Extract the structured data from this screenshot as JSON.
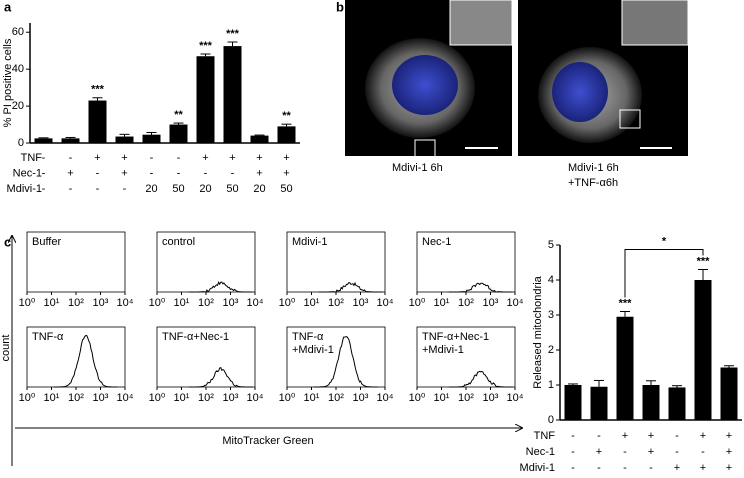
{
  "panel_labels": [
    "a",
    "b",
    "c"
  ],
  "images": [
    {
      "caption": [
        "Mdivi-1 6h"
      ]
    },
    {
      "caption": [
        "Mdivi-1 6h",
        "+TNF-α6h"
      ]
    }
  ],
  "chart_data": [
    {
      "type": "bar",
      "ylabel": "% PI positive cells",
      "ylim": [
        0,
        65
      ],
      "yticks": [
        0,
        20,
        40,
        60
      ],
      "values": [
        2.5,
        2.5,
        23,
        3.5,
        4.5,
        10,
        47,
        52.5,
        4,
        9
      ],
      "errors": [
        0.3,
        0.5,
        1.5,
        1.2,
        1.2,
        0.8,
        1.2,
        2.2,
        0.3,
        1.2
      ],
      "significance": [
        null,
        null,
        "***",
        null,
        null,
        "**",
        "***",
        "***",
        null,
        "**"
      ],
      "color": "#000000",
      "conditions": [
        {
          "name": "TNF",
          "values": [
            "-",
            "-",
            "+",
            "+",
            "-",
            "-",
            "+",
            "+",
            "+",
            "+"
          ]
        },
        {
          "name": "Nec-1",
          "values": [
            "-",
            "+",
            "-",
            "+",
            "-",
            "-",
            "-",
            "-",
            "+",
            "+"
          ]
        },
        {
          "name": "Mdivi-1",
          "values": [
            "-",
            "-",
            "-",
            "-",
            "20",
            "50",
            "20",
            "50",
            "20",
            "50"
          ]
        }
      ]
    },
    {
      "type": "bar",
      "ylabel": "Released mitochondria",
      "ylim": [
        0,
        5
      ],
      "yticks": [
        0,
        1,
        2,
        3,
        4,
        5
      ],
      "values": [
        1,
        0.95,
        2.95,
        1.0,
        0.93,
        4.0,
        1.5
      ],
      "errors": [
        0.03,
        0.18,
        0.15,
        0.12,
        0.05,
        0.3,
        0.05
      ],
      "significance": [
        null,
        null,
        "***",
        null,
        null,
        "***",
        null
      ],
      "bracket": {
        "from": 2,
        "to": 5,
        "label": "*"
      },
      "color": "#000000",
      "conditions": [
        {
          "name": "TNF",
          "values": [
            "-",
            "-",
            "+",
            "+",
            "-",
            "+",
            "+"
          ]
        },
        {
          "name": "Nec-1",
          "values": [
            "-",
            "+",
            "-",
            "+",
            "-",
            "-",
            "+"
          ]
        },
        {
          "name": "Mdivi-1",
          "values": [
            "-",
            "-",
            "-",
            "-",
            "+",
            "+",
            "+"
          ]
        }
      ]
    },
    {
      "type": "histogram-grid",
      "xlabel": "MitoTracker Green",
      "ylabel": "count",
      "xlog": true,
      "xlim": [
        1,
        10000
      ],
      "xticks": [
        {
          "value": 1,
          "label": "10⁰"
        },
        {
          "value": 10,
          "label": "10¹"
        },
        {
          "value": 100,
          "label": "10²"
        },
        {
          "value": 1000,
          "label": "10³"
        },
        {
          "value": 10000,
          "label": "10⁴"
        }
      ],
      "ylim": [
        0,
        1
      ],
      "series": [
        {
          "name": [
            "Buffer"
          ],
          "peak": null,
          "height": null
        },
        {
          "name": [
            "control"
          ],
          "peak": 400,
          "height": 0.15
        },
        {
          "name": [
            "Mdivi-1"
          ],
          "peak": 400,
          "height": 0.15
        },
        {
          "name": [
            "Nec-1"
          ],
          "peak": 400,
          "height": 0.15
        },
        {
          "name": [
            "TNF-α"
          ],
          "peak": 250,
          "height": 0.85
        },
        {
          "name": [
            "TNF-α+Nec-1"
          ],
          "peak": 400,
          "height": 0.3
        },
        {
          "name": [
            "TNF-α",
            "+Mdivi-1"
          ],
          "peak": 250,
          "height": 0.85
        },
        {
          "name": [
            "TNF-α+Nec-1",
            "+Mdivi-1"
          ],
          "peak": 400,
          "height": 0.25
        }
      ]
    }
  ]
}
